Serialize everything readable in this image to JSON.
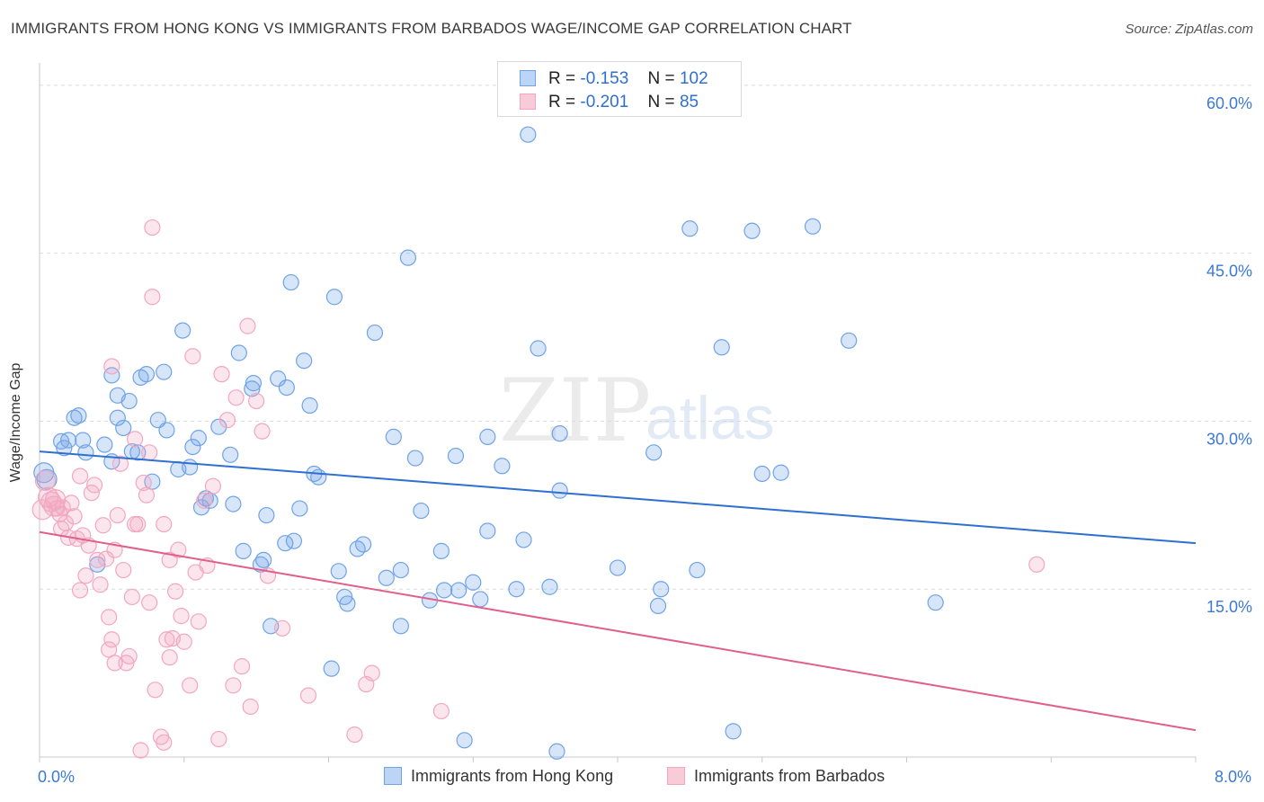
{
  "header": {
    "title": "IMMIGRANTS FROM HONG KONG VS IMMIGRANTS FROM BARBADOS WAGE/INCOME GAP CORRELATION CHART",
    "source": "Source: ZipAtlas.com"
  },
  "watermark": {
    "zip": "ZIP",
    "atlas": "atlas"
  },
  "legend": {
    "rows": [
      {
        "r_label": "R =",
        "r_value": "-0.153",
        "n_label": "N =",
        "n_value": "102"
      },
      {
        "r_label": "R =",
        "r_value": "-0.201",
        "n_label": "N =",
        "n_value": "85"
      }
    ]
  },
  "chart_data": {
    "type": "scatter",
    "ylabel": "Wage/Income Gap",
    "xlabel": "",
    "xlim": [
      0,
      8
    ],
    "ylim": [
      0,
      62
    ],
    "x_tick_labels": [
      {
        "value": 0,
        "label": "0.0%"
      },
      {
        "value": 8,
        "label": "8.0%"
      }
    ],
    "y_tick_labels": [
      {
        "value": 15,
        "label": "15.0%"
      },
      {
        "value": 30,
        "label": "30.0%"
      },
      {
        "value": 45,
        "label": "45.0%"
      },
      {
        "value": 60,
        "label": "60.0%"
      }
    ],
    "grid": true,
    "legend_position": "bottom",
    "series": [
      {
        "name": "Immigrants from Hong Kong",
        "color": "#6fa3e8",
        "trend_color": "#2f6fd0",
        "trend": {
          "x": [
            0,
            8
          ],
          "y": [
            27.3,
            19.1
          ]
        },
        "points": [
          [
            0.03,
            25.4
          ],
          [
            0.05,
            24.8
          ],
          [
            0.15,
            28.2
          ],
          [
            0.17,
            27.6
          ],
          [
            0.2,
            28.3
          ],
          [
            0.24,
            30.3
          ],
          [
            0.27,
            30.5
          ],
          [
            0.3,
            28.3
          ],
          [
            0.32,
            27.2
          ],
          [
            0.4,
            17.2
          ],
          [
            0.45,
            27.9
          ],
          [
            0.5,
            26.4
          ],
          [
            0.5,
            34.1
          ],
          [
            0.54,
            32.3
          ],
          [
            0.54,
            30.3
          ],
          [
            0.58,
            29.4
          ],
          [
            0.62,
            31.8
          ],
          [
            0.64,
            27.3
          ],
          [
            0.68,
            27.2
          ],
          [
            0.7,
            33.9
          ],
          [
            0.74,
            34.2
          ],
          [
            0.78,
            24.6
          ],
          [
            0.82,
            30.1
          ],
          [
            0.86,
            34.4
          ],
          [
            0.88,
            29.2
          ],
          [
            0.96,
            25.7
          ],
          [
            0.99,
            38.1
          ],
          [
            1.04,
            25.9
          ],
          [
            1.06,
            27.7
          ],
          [
            1.1,
            28.5
          ],
          [
            1.12,
            22.3
          ],
          [
            1.15,
            23.1
          ],
          [
            1.18,
            22.9
          ],
          [
            1.24,
            29.5
          ],
          [
            1.32,
            27.0
          ],
          [
            1.34,
            22.6
          ],
          [
            1.38,
            36.1
          ],
          [
            1.41,
            18.4
          ],
          [
            1.47,
            32.9
          ],
          [
            1.48,
            33.4
          ],
          [
            1.53,
            17.2
          ],
          [
            1.55,
            17.6
          ],
          [
            1.57,
            21.6
          ],
          [
            1.6,
            11.7
          ],
          [
            1.65,
            33.8
          ],
          [
            1.7,
            19.1
          ],
          [
            1.71,
            33.0
          ],
          [
            1.74,
            42.4
          ],
          [
            1.76,
            19.3
          ],
          [
            1.8,
            22.2
          ],
          [
            1.83,
            35.4
          ],
          [
            1.87,
            31.4
          ],
          [
            1.9,
            25.3
          ],
          [
            1.93,
            25.0
          ],
          [
            2.02,
            7.9
          ],
          [
            2.04,
            41.1
          ],
          [
            2.07,
            16.6
          ],
          [
            2.11,
            14.3
          ],
          [
            2.13,
            13.7
          ],
          [
            2.2,
            18.6
          ],
          [
            2.24,
            19.0
          ],
          [
            2.32,
            37.9
          ],
          [
            2.45,
            28.6
          ],
          [
            2.5,
            16.7
          ],
          [
            2.5,
            11.7
          ],
          [
            2.55,
            44.6
          ],
          [
            2.6,
            26.7
          ],
          [
            2.64,
            22.0
          ],
          [
            2.7,
            14.0
          ],
          [
            2.78,
            18.4
          ],
          [
            2.8,
            14.9
          ],
          [
            2.88,
            26.9
          ],
          [
            2.9,
            14.9
          ],
          [
            2.94,
            1.5
          ],
          [
            3.0,
            15.6
          ],
          [
            3.05,
            14.1
          ],
          [
            3.1,
            20.2
          ],
          [
            3.1,
            28.6
          ],
          [
            3.2,
            26.0
          ],
          [
            3.3,
            15.0
          ],
          [
            3.35,
            19.4
          ],
          [
            3.38,
            55.6
          ],
          [
            3.45,
            36.5
          ],
          [
            3.53,
            15.2
          ],
          [
            3.58,
            0.5
          ],
          [
            3.6,
            28.9
          ],
          [
            3.6,
            23.8
          ],
          [
            4.0,
            16.9
          ],
          [
            4.25,
            27.2
          ],
          [
            4.28,
            13.5
          ],
          [
            4.3,
            15.0
          ],
          [
            4.5,
            47.2
          ],
          [
            4.55,
            16.7
          ],
          [
            4.72,
            36.6
          ],
          [
            4.8,
            2.3
          ],
          [
            4.93,
            47.0
          ],
          [
            5.0,
            25.3
          ],
          [
            5.13,
            25.4
          ],
          [
            5.35,
            47.4
          ],
          [
            5.6,
            37.2
          ],
          [
            6.2,
            13.8
          ],
          [
            2.4,
            16.0
          ]
        ]
      },
      {
        "name": "Immigrants from Barbados",
        "color": "#f2a7bf",
        "trend_color": "#e05f8c",
        "trend": {
          "x": [
            0,
            8
          ],
          "y": [
            20.1,
            2.4
          ]
        },
        "points": [
          [
            0.02,
            22.1
          ],
          [
            0.04,
            24.7
          ],
          [
            0.06,
            23.2
          ],
          [
            0.08,
            22.8
          ],
          [
            0.1,
            22.4
          ],
          [
            0.11,
            23.0
          ],
          [
            0.12,
            22.2
          ],
          [
            0.14,
            21.7
          ],
          [
            0.16,
            22.3
          ],
          [
            0.18,
            20.9
          ],
          [
            0.2,
            19.6
          ],
          [
            0.22,
            22.7
          ],
          [
            0.24,
            21.5
          ],
          [
            0.26,
            19.5
          ],
          [
            0.28,
            14.9
          ],
          [
            0.28,
            25.1
          ],
          [
            0.3,
            19.8
          ],
          [
            0.32,
            16.2
          ],
          [
            0.34,
            18.9
          ],
          [
            0.36,
            23.6
          ],
          [
            0.38,
            24.3
          ],
          [
            0.4,
            17.6
          ],
          [
            0.42,
            15.4
          ],
          [
            0.44,
            20.7
          ],
          [
            0.46,
            17.7
          ],
          [
            0.48,
            9.6
          ],
          [
            0.48,
            12.5
          ],
          [
            0.5,
            10.5
          ],
          [
            0.5,
            34.9
          ],
          [
            0.52,
            18.5
          ],
          [
            0.52,
            8.4
          ],
          [
            0.54,
            21.6
          ],
          [
            0.56,
            26.2
          ],
          [
            0.6,
            8.4
          ],
          [
            0.62,
            9.0
          ],
          [
            0.64,
            14.3
          ],
          [
            0.66,
            20.8
          ],
          [
            0.68,
            20.8
          ],
          [
            0.7,
            0.6
          ],
          [
            0.72,
            24.5
          ],
          [
            0.74,
            23.4
          ],
          [
            0.76,
            27.2
          ],
          [
            0.76,
            13.8
          ],
          [
            0.78,
            41.1
          ],
          [
            0.78,
            47.3
          ],
          [
            0.8,
            6.0
          ],
          [
            0.84,
            1.8
          ],
          [
            0.86,
            1.3
          ],
          [
            0.86,
            20.8
          ],
          [
            0.88,
            10.5
          ],
          [
            0.9,
            8.9
          ],
          [
            0.9,
            17.6
          ],
          [
            0.94,
            14.8
          ],
          [
            0.96,
            18.5
          ],
          [
            0.98,
            12.6
          ],
          [
            1.0,
            10.3
          ],
          [
            1.04,
            6.4
          ],
          [
            1.06,
            35.8
          ],
          [
            1.08,
            16.5
          ],
          [
            1.1,
            12.1
          ],
          [
            1.14,
            22.9
          ],
          [
            1.16,
            17.1
          ],
          [
            1.2,
            24.2
          ],
          [
            1.24,
            1.6
          ],
          [
            1.26,
            34.2
          ],
          [
            1.3,
            30.1
          ],
          [
            1.34,
            6.4
          ],
          [
            1.4,
            8.1
          ],
          [
            1.44,
            38.5
          ],
          [
            1.46,
            4.5
          ],
          [
            1.5,
            31.8
          ],
          [
            1.54,
            29.1
          ],
          [
            1.58,
            16.2
          ],
          [
            1.68,
            11.5
          ],
          [
            1.86,
            5.5
          ],
          [
            2.18,
            2.0
          ],
          [
            2.26,
            6.5
          ],
          [
            2.3,
            7.5
          ],
          [
            2.78,
            4.1
          ],
          [
            6.9,
            17.2
          ],
          [
            1.36,
            32.1
          ],
          [
            0.66,
            28.4
          ],
          [
            0.92,
            10.6
          ],
          [
            0.58,
            16.7
          ],
          [
            0.15,
            20.4
          ]
        ]
      }
    ]
  }
}
